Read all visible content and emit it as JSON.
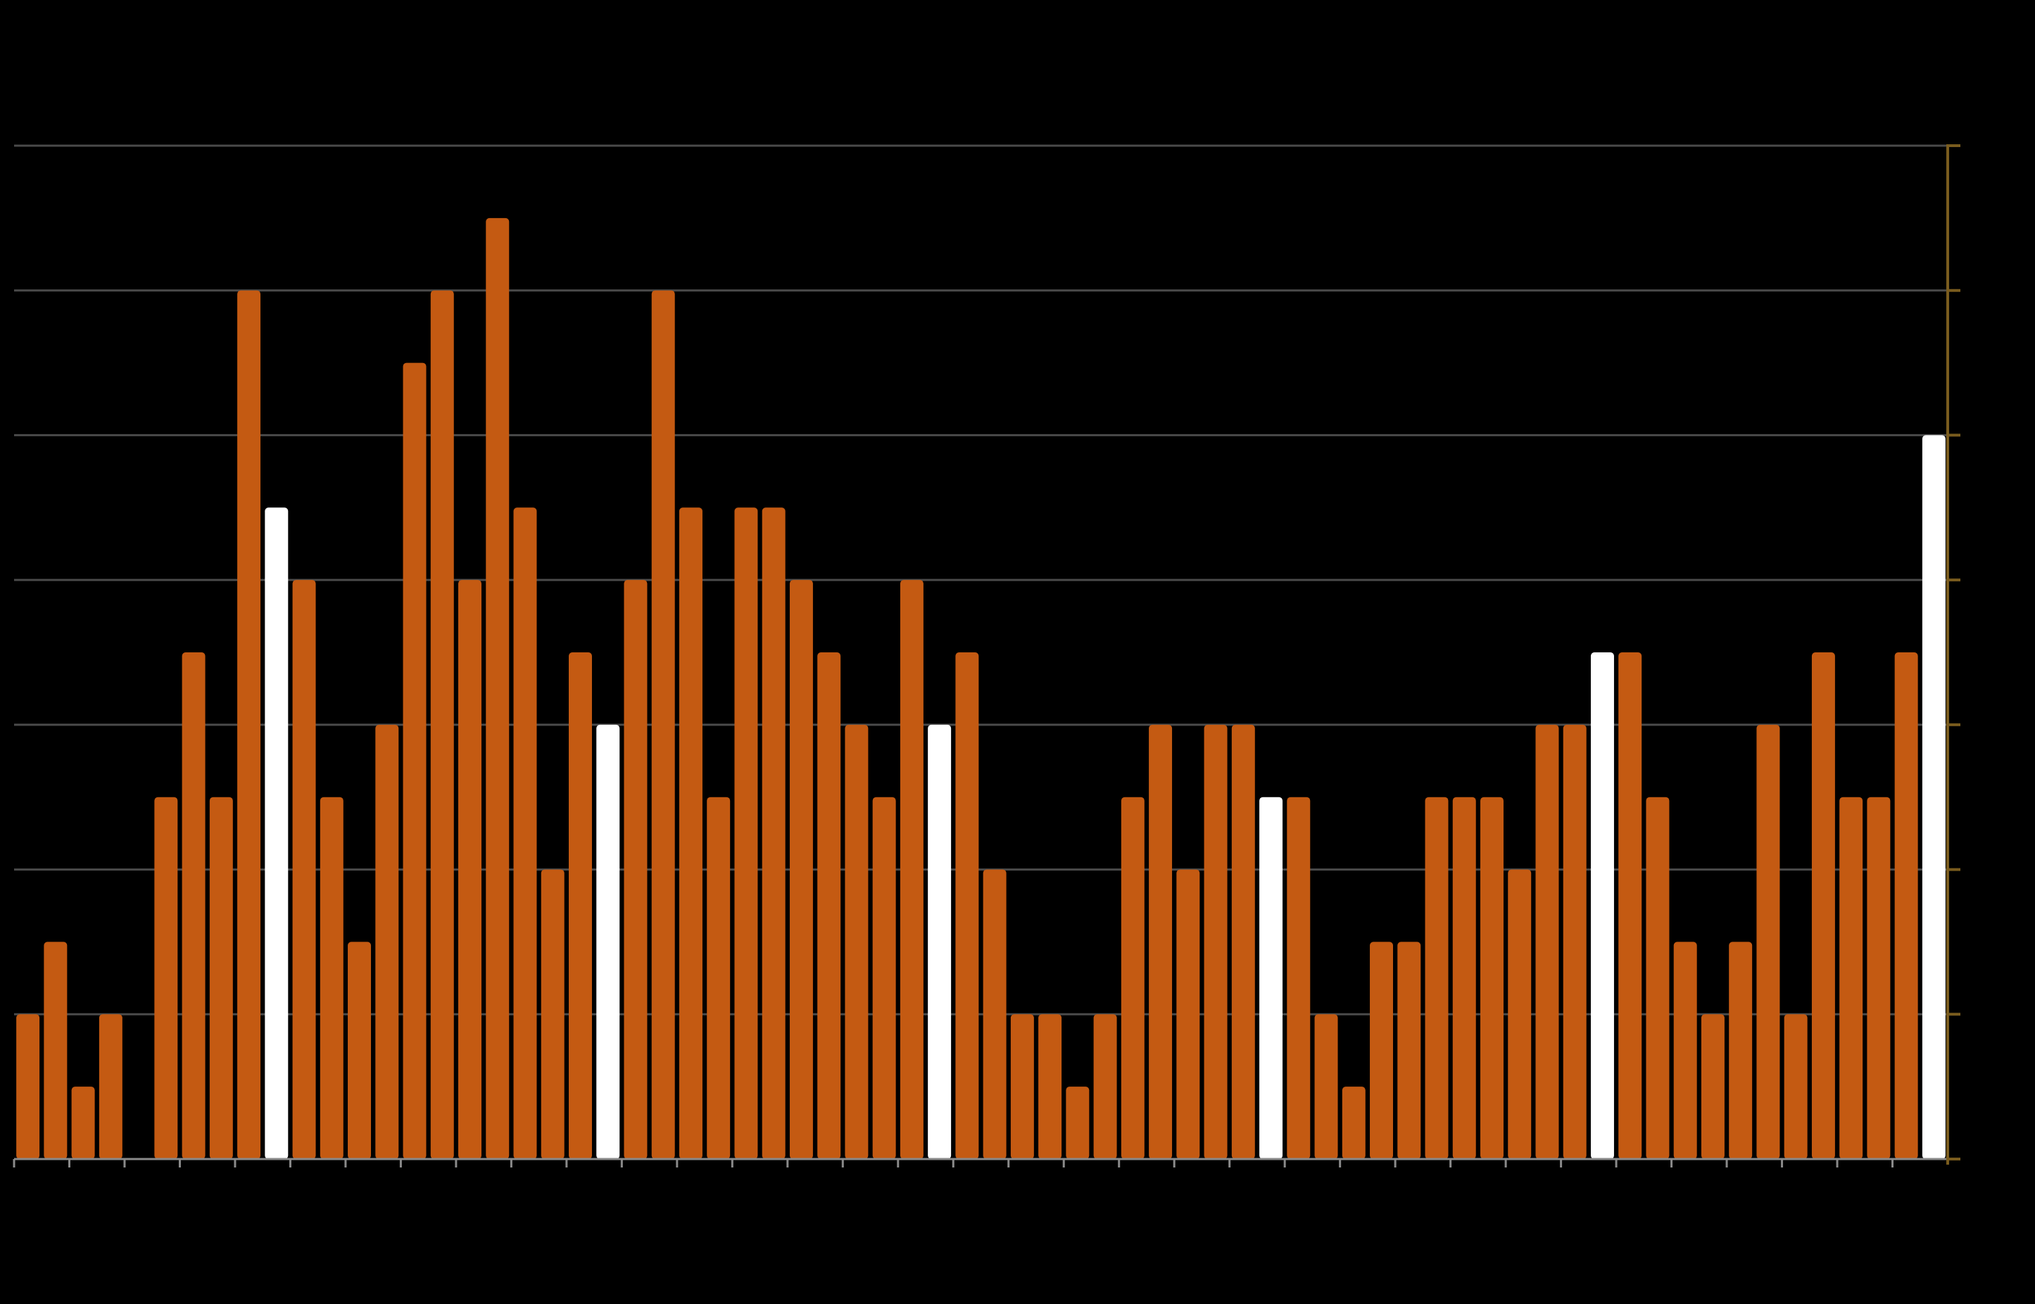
{
  "chart_data": {
    "type": "bar",
    "values": [
      2,
      3,
      1,
      2,
      0,
      5,
      7,
      5,
      12,
      9,
      8,
      5,
      3,
      6,
      11,
      12,
      8,
      13,
      9,
      4,
      7,
      6,
      8,
      12,
      9,
      5,
      9,
      9,
      8,
      7,
      6,
      5,
      8,
      6,
      7,
      4,
      2,
      2,
      1,
      2,
      5,
      6,
      4,
      6,
      6,
      5,
      5,
      2,
      1,
      3,
      3,
      5,
      5,
      5,
      4,
      6,
      6,
      7,
      7,
      5,
      3,
      2,
      3,
      6,
      2,
      7,
      5,
      5,
      7,
      10
    ],
    "highlight_indices": [
      9,
      21,
      33,
      45,
      57,
      69
    ],
    "ylim": [
      0,
      14
    ],
    "grid": true,
    "grid_step": 2,
    "legend": "none",
    "colors": {
      "bar": "#c45a12",
      "highlight": "#ffffff",
      "background": "#000000",
      "gridline": "#4a4a4a",
      "axis": "#8a8a8a",
      "right_axis": "#7a5c1e"
    }
  }
}
